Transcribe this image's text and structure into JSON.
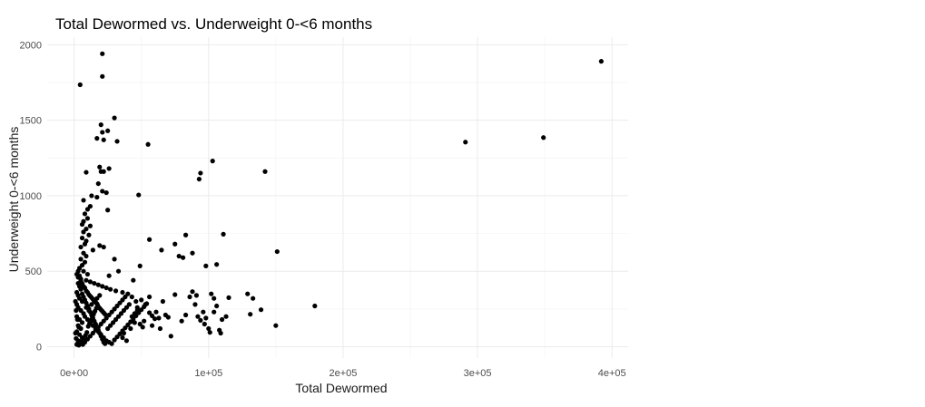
{
  "chart_data": {
    "type": "scatter",
    "title": "Total Dewormed vs. Underweight 0-<6 months",
    "xlabel": "Total Dewormed",
    "ylabel": "Underweight 0-<6 months",
    "xlim": [
      -20000,
      412000
    ],
    "ylim": [
      -75,
      2050
    ],
    "x_ticks": [
      0,
      100000,
      200000,
      300000,
      400000
    ],
    "x_tick_labels": [
      "0e+00",
      "1e+05",
      "2e+05",
      "3e+05",
      "4e+05"
    ],
    "y_ticks": [
      0,
      500,
      1000,
      1500,
      2000
    ],
    "y_tick_labels": [
      "0",
      "500",
      "1000",
      "1500",
      "2000"
    ],
    "grid": true,
    "point_color": "#000000",
    "series": [
      {
        "points": [
          [
            392000,
            1890
          ],
          [
            349000,
            1385
          ],
          [
            291000,
            1355
          ],
          [
            4500,
            1735
          ],
          [
            21000,
            1940
          ],
          [
            21000,
            1790
          ],
          [
            30000,
            1515
          ],
          [
            20000,
            1470
          ],
          [
            21000,
            1420
          ],
          [
            25000,
            1430
          ],
          [
            17000,
            1380
          ],
          [
            22000,
            1370
          ],
          [
            32000,
            1360
          ],
          [
            55000,
            1340
          ],
          [
            9000,
            1155
          ],
          [
            19000,
            1190
          ],
          [
            22000,
            1160
          ],
          [
            26000,
            1180
          ],
          [
            20000,
            1160
          ],
          [
            94000,
            1150
          ],
          [
            93000,
            1110
          ],
          [
            103000,
            1230
          ],
          [
            142000,
            1160
          ],
          [
            18000,
            1080
          ],
          [
            21000,
            1030
          ],
          [
            24000,
            1020
          ],
          [
            13000,
            1000
          ],
          [
            17000,
            990
          ],
          [
            48000,
            1005
          ],
          [
            7000,
            970
          ],
          [
            12000,
            930
          ],
          [
            10000,
            910
          ],
          [
            25000,
            905
          ],
          [
            8000,
            880
          ],
          [
            10000,
            850
          ],
          [
            7000,
            830
          ],
          [
            6000,
            810
          ],
          [
            12000,
            800
          ],
          [
            9000,
            780
          ],
          [
            7000,
            760
          ],
          [
            11000,
            740
          ],
          [
            6000,
            720
          ],
          [
            9000,
            700
          ],
          [
            8000,
            680
          ],
          [
            5000,
            660
          ],
          [
            19000,
            670
          ],
          [
            22000,
            660
          ],
          [
            14000,
            640
          ],
          [
            56000,
            710
          ],
          [
            65000,
            640
          ],
          [
            75000,
            680
          ],
          [
            83000,
            740
          ],
          [
            111000,
            745
          ],
          [
            151000,
            630
          ],
          [
            78000,
            600
          ],
          [
            81000,
            590
          ],
          [
            88000,
            620
          ],
          [
            98000,
            535
          ],
          [
            106000,
            545
          ],
          [
            49000,
            535
          ],
          [
            7000,
            620
          ],
          [
            9000,
            600
          ],
          [
            5000,
            580
          ],
          [
            8000,
            560
          ],
          [
            6000,
            540
          ],
          [
            4000,
            520
          ],
          [
            7000,
            500
          ],
          [
            10000,
            480
          ],
          [
            3000,
            460
          ],
          [
            5000,
            450
          ],
          [
            9000,
            440
          ],
          [
            12000,
            430
          ],
          [
            15000,
            420
          ],
          [
            18000,
            410
          ],
          [
            21000,
            400
          ],
          [
            24000,
            390
          ],
          [
            27000,
            380
          ],
          [
            31000,
            370
          ],
          [
            36000,
            360
          ],
          [
            40000,
            350
          ],
          [
            30000,
            580
          ],
          [
            33000,
            500
          ],
          [
            26000,
            470
          ],
          [
            44000,
            440
          ],
          [
            3000,
            420
          ],
          [
            4000,
            400
          ],
          [
            5000,
            380
          ],
          [
            2000,
            360
          ],
          [
            3000,
            340
          ],
          [
            4000,
            320
          ],
          [
            6000,
            300
          ],
          [
            2000,
            280
          ],
          [
            3000,
            260
          ],
          [
            5000,
            240
          ],
          [
            7000,
            220
          ],
          [
            2000,
            200
          ],
          [
            4000,
            180
          ],
          [
            6000,
            160
          ],
          [
            3000,
            140
          ],
          [
            5000,
            120
          ],
          [
            2000,
            100
          ],
          [
            4000,
            80
          ],
          [
            6000,
            60
          ],
          [
            3000,
            40
          ],
          [
            5000,
            25
          ],
          [
            2000,
            15
          ],
          [
            8000,
            30
          ],
          [
            10000,
            50
          ],
          [
            12000,
            70
          ],
          [
            14000,
            90
          ],
          [
            16000,
            110
          ],
          [
            18000,
            130
          ],
          [
            20000,
            150
          ],
          [
            22000,
            170
          ],
          [
            24000,
            190
          ],
          [
            26000,
            210
          ],
          [
            28000,
            230
          ],
          [
            30000,
            250
          ],
          [
            32000,
            270
          ],
          [
            34000,
            290
          ],
          [
            36000,
            310
          ],
          [
            38000,
            330
          ],
          [
            9000,
            260
          ],
          [
            11000,
            240
          ],
          [
            13000,
            280
          ],
          [
            15000,
            300
          ],
          [
            17000,
            320
          ],
          [
            19000,
            340
          ],
          [
            8000,
            200
          ],
          [
            10000,
            180
          ],
          [
            12000,
            160
          ],
          [
            14000,
            140
          ],
          [
            16000,
            120
          ],
          [
            18000,
            100
          ],
          [
            20000,
            80
          ],
          [
            22000,
            60
          ],
          [
            24000,
            40
          ],
          [
            26000,
            30
          ],
          [
            28000,
            20
          ],
          [
            30000,
            45
          ],
          [
            32000,
            65
          ],
          [
            34000,
            85
          ],
          [
            36000,
            105
          ],
          [
            38000,
            125
          ],
          [
            40000,
            145
          ],
          [
            42000,
            165
          ],
          [
            44000,
            185
          ],
          [
            46000,
            205
          ],
          [
            48000,
            225
          ],
          [
            50000,
            245
          ],
          [
            52000,
            265
          ],
          [
            54000,
            285
          ],
          [
            56000,
            225
          ],
          [
            58000,
            205
          ],
          [
            60000,
            185
          ],
          [
            46000,
            300
          ],
          [
            50000,
            310
          ],
          [
            56000,
            330
          ],
          [
            53000,
            280
          ],
          [
            45000,
            160
          ],
          [
            42000,
            120
          ],
          [
            37000,
            90
          ],
          [
            36000,
            60
          ],
          [
            39000,
            40
          ],
          [
            63000,
            190
          ],
          [
            66000,
            300
          ],
          [
            70000,
            195
          ],
          [
            72000,
            70
          ],
          [
            75000,
            345
          ],
          [
            80000,
            170
          ],
          [
            83000,
            210
          ],
          [
            86000,
            330
          ],
          [
            88000,
            365
          ],
          [
            90000,
            280
          ],
          [
            92000,
            200
          ],
          [
            94000,
            175
          ],
          [
            96000,
            230
          ],
          [
            98000,
            190
          ],
          [
            100000,
            120
          ],
          [
            101000,
            95
          ],
          [
            102000,
            350
          ],
          [
            104000,
            320
          ],
          [
            106000,
            270
          ],
          [
            108000,
            110
          ],
          [
            109000,
            90
          ],
          [
            110000,
            180
          ],
          [
            113000,
            200
          ],
          [
            115000,
            325
          ],
          [
            129000,
            350
          ],
          [
            131000,
            215
          ],
          [
            133000,
            320
          ],
          [
            139000,
            245
          ],
          [
            150000,
            140
          ],
          [
            179000,
            270
          ],
          [
            91000,
            340
          ],
          [
            97000,
            150
          ],
          [
            104000,
            230
          ],
          [
            58000,
            140
          ],
          [
            64000,
            120
          ],
          [
            68000,
            210
          ],
          [
            43000,
            330
          ],
          [
            47000,
            260
          ],
          [
            52000,
            170
          ],
          [
            61000,
            230
          ],
          [
            1000,
            300
          ],
          [
            1500,
            240
          ],
          [
            2500,
            180
          ],
          [
            3500,
            130
          ],
          [
            1000,
            90
          ],
          [
            1500,
            55
          ],
          [
            2500,
            20
          ],
          [
            3500,
            10
          ],
          [
            4500,
            35
          ],
          [
            6500,
            15
          ],
          [
            7500,
            45
          ],
          [
            8500,
            75
          ],
          [
            9500,
            95
          ],
          [
            10500,
            135
          ],
          [
            11500,
            155
          ],
          [
            12500,
            175
          ],
          [
            13500,
            195
          ],
          [
            14500,
            215
          ],
          [
            15500,
            235
          ],
          [
            16500,
            255
          ],
          [
            17500,
            275
          ],
          [
            6000,
            350
          ],
          [
            7000,
            330
          ],
          [
            8000,
            310
          ],
          [
            9000,
            290
          ],
          [
            10000,
            270
          ],
          [
            11000,
            250
          ],
          [
            12000,
            230
          ],
          [
            13000,
            210
          ],
          [
            14000,
            190
          ],
          [
            15000,
            170
          ],
          [
            16000,
            150
          ],
          [
            17000,
            130
          ],
          [
            18000,
            110
          ],
          [
            19000,
            90
          ],
          [
            20000,
            70
          ],
          [
            21000,
            50
          ],
          [
            22000,
            30
          ],
          [
            23000,
            20
          ],
          [
            25000,
            120
          ],
          [
            27000,
            140
          ],
          [
            29000,
            160
          ],
          [
            31000,
            180
          ],
          [
            33000,
            200
          ],
          [
            35000,
            220
          ],
          [
            37000,
            240
          ],
          [
            39000,
            260
          ],
          [
            41000,
            280
          ],
          [
            43000,
            200
          ],
          [
            45000,
            220
          ],
          [
            47000,
            240
          ],
          [
            49000,
            150
          ],
          [
            51000,
            130
          ],
          [
            2000,
            480
          ],
          [
            3000,
            500
          ],
          [
            4000,
            470
          ],
          [
            5000,
            440
          ],
          [
            6000,
            420
          ],
          [
            7000,
            400
          ],
          [
            8000,
            390
          ],
          [
            9000,
            370
          ],
          [
            10000,
            360
          ],
          [
            11000,
            345
          ],
          [
            12000,
            335
          ],
          [
            13000,
            325
          ],
          [
            14000,
            315
          ],
          [
            15000,
            305
          ],
          [
            16000,
            295
          ],
          [
            17000,
            285
          ],
          [
            18000,
            265
          ],
          [
            19000,
            255
          ],
          [
            20000,
            245
          ],
          [
            21000,
            235
          ],
          [
            22000,
            225
          ],
          [
            23000,
            215
          ]
        ]
      }
    ]
  }
}
